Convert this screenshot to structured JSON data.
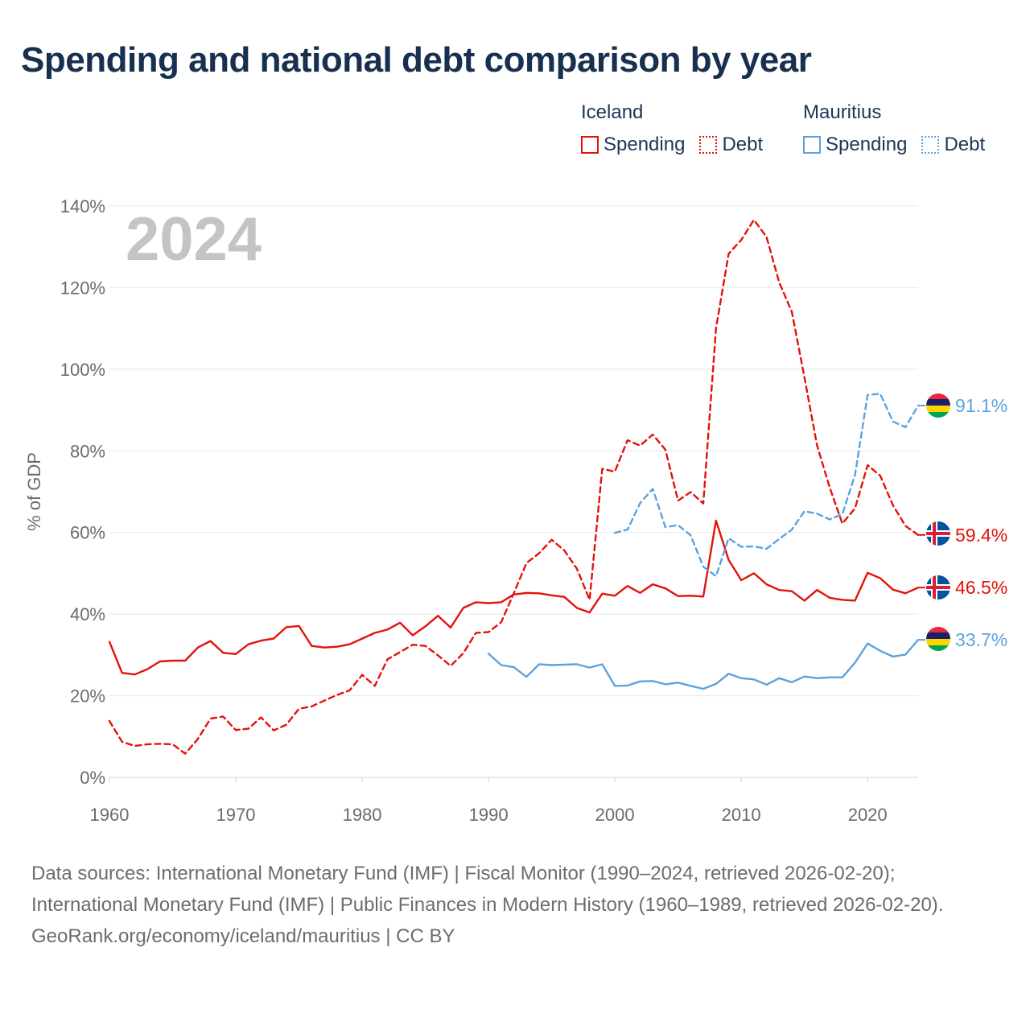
{
  "title": "Spending and national debt comparison by year",
  "legend": {
    "iceland": {
      "name": "Iceland",
      "spending_label": "Spending",
      "debt_label": "Debt",
      "color": "#e3120b"
    },
    "mauritius": {
      "name": "Mauritius",
      "spending_label": "Spending",
      "debt_label": "Debt",
      "color": "#5ba3e0"
    }
  },
  "year_label": "2024",
  "footer": {
    "sources": "Data sources: International Monetary Fund (IMF) | Fiscal Monitor (1990–2024, retrieved 2026-02-20); International Monetary Fund (IMF) | Public Finances in Modern History (1960–1989, retrieved 2026-02-20).",
    "credit": "GeoRank.org/economy/iceland/mauritius | CC BY"
  },
  "chart_data": {
    "type": "line",
    "ylabel": "% of GDP",
    "xlabel": "",
    "xlim": [
      1960,
      2024
    ],
    "ylim": [
      0,
      140
    ],
    "x_ticks": [
      1960,
      1970,
      1980,
      1990,
      2000,
      2010,
      2020
    ],
    "y_ticks": [
      {
        "value": 0,
        "label": "0%"
      },
      {
        "value": 20,
        "label": "20%"
      },
      {
        "value": 40,
        "label": "40%"
      },
      {
        "value": 60,
        "label": "60%"
      },
      {
        "value": 80,
        "label": "80%"
      },
      {
        "value": 100,
        "label": "100%"
      },
      {
        "value": 120,
        "label": "120%"
      },
      {
        "value": 140,
        "label": "140%"
      }
    ],
    "grid": true,
    "series": [
      {
        "name": "Iceland Spending",
        "country": "Iceland",
        "color": "#e3120b",
        "dash": false,
        "start_year": 1960,
        "values": [
          33.2,
          25.6,
          25.2,
          26.5,
          28.4,
          28.6,
          28.6,
          31.8,
          33.4,
          30.5,
          30.2,
          32.6,
          33.5,
          34.0,
          36.8,
          37.1,
          32.2,
          31.8,
          32.0,
          32.6,
          34.0,
          35.4,
          36.2,
          37.9,
          34.8,
          37.0,
          39.6,
          36.7,
          41.5,
          42.9,
          42.7,
          42.9,
          44.8,
          45.2,
          45.1,
          44.6,
          44.2,
          41.5,
          40.4,
          45.0,
          44.5,
          46.9,
          45.2,
          47.3,
          46.3,
          44.4,
          44.5,
          44.3,
          62.9,
          53.3,
          48.3,
          50.0,
          47.3,
          45.9,
          45.6,
          43.3,
          45.9,
          44.0,
          43.5,
          43.3,
          50.1,
          48.8,
          46.0,
          45.1,
          46.5
        ],
        "end_label": "46.5%"
      },
      {
        "name": "Iceland Debt",
        "country": "Iceland",
        "color": "#e3120b",
        "dash": true,
        "start_year": 1960,
        "values": [
          13.8,
          8.7,
          7.7,
          8.1,
          8.2,
          8.1,
          5.8,
          9.4,
          14.4,
          14.9,
          11.6,
          11.9,
          14.7,
          11.5,
          12.9,
          16.8,
          17.4,
          18.8,
          20.2,
          21.3,
          25.1,
          22.4,
          28.9,
          30.7,
          32.5,
          32.2,
          29.9,
          27.3,
          30.4,
          35.4,
          35.6,
          38.0,
          45.1,
          52.5,
          54.9,
          58.2,
          55.6,
          51.1,
          43.5,
          75.6,
          74.9,
          82.6,
          81.3,
          84.0,
          80.3,
          67.8,
          69.9,
          67.1,
          110.0,
          128.3,
          131.7,
          136.6,
          132.4,
          121.3,
          114.1,
          98.0,
          81.3,
          71.0,
          62.2,
          65.9,
          76.5,
          73.9,
          66.7,
          61.6,
          59.4
        ],
        "end_label": "59.4%"
      },
      {
        "name": "Mauritius Spending",
        "country": "Mauritius",
        "color": "#5ba3e0",
        "dash": false,
        "start_year": 1990,
        "values": [
          30.3,
          27.5,
          27.0,
          24.6,
          27.7,
          27.5,
          27.6,
          27.7,
          26.9,
          27.7,
          22.4,
          22.5,
          23.5,
          23.6,
          22.8,
          23.2,
          22.4,
          21.7,
          22.9,
          25.4,
          24.3,
          24.0,
          22.7,
          24.3,
          23.3,
          24.7,
          24.3,
          24.5,
          24.5,
          28.1,
          32.8,
          31.0,
          29.6,
          30.1,
          33.7
        ],
        "end_label": "33.7%"
      },
      {
        "name": "Mauritius Debt",
        "country": "Mauritius",
        "color": "#5ba3e0",
        "dash": true,
        "start_year": 2000,
        "values": [
          59.9,
          60.7,
          67.2,
          70.7,
          61.3,
          61.8,
          59.3,
          51.6,
          49.3,
          58.6,
          56.5,
          56.6,
          56.0,
          58.4,
          60.7,
          65.2,
          64.6,
          63.2,
          64.5,
          74.1,
          93.7,
          94.0,
          87.2,
          85.8,
          91.1
        ],
        "end_label": "91.1%"
      }
    ]
  }
}
